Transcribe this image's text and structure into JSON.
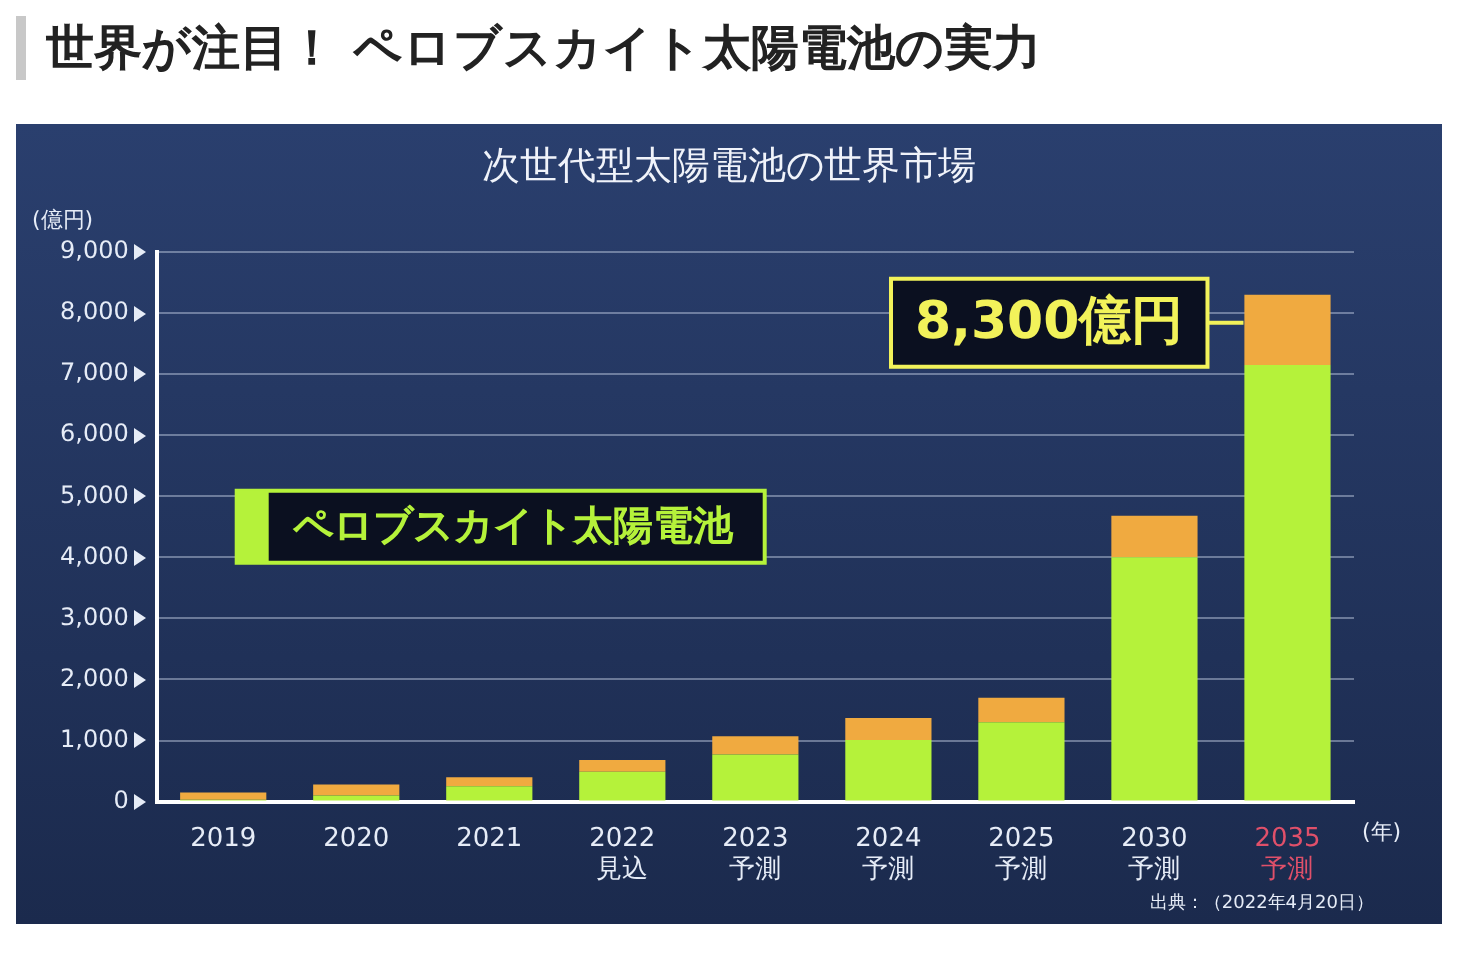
{
  "chart_data": {
    "type": "bar",
    "title": "世界が注目！ ペロブスカイト太陽電池の実力",
    "subtitle": "次世代型太陽電池の世界市場",
    "ylabel": "(億円)",
    "xlabel": "(年)",
    "categories": [
      "2019",
      "2020",
      "2021",
      "2022\n見込",
      "2023\n予測",
      "2024\n予測",
      "2025\n予測",
      "2030\n予測",
      "2035\n予測"
    ],
    "stacked": true,
    "series": [
      {
        "name": "ペロブスカイト太陽電池",
        "color": "#b5f23a",
        "values": [
          30,
          100,
          250,
          490,
          770,
          1010,
          1300,
          4000,
          7150
        ]
      },
      {
        "color": "#f0aa40",
        "values": [
          120,
          180,
          150,
          190,
          300,
          360,
          400,
          680,
          1150
        ]
      }
    ],
    "ylim": [
      0,
      9000
    ],
    "yticks": [
      {
        "value": 0,
        "label": "0"
      },
      {
        "value": 1000,
        "label": "1,000"
      },
      {
        "value": 2000,
        "label": "2,000"
      },
      {
        "value": 3000,
        "label": "3,000"
      },
      {
        "value": 4000,
        "label": "4,000"
      },
      {
        "value": 5000,
        "label": "5,000"
      },
      {
        "value": 6000,
        "label": "6,000"
      },
      {
        "value": 7000,
        "label": "7,000"
      },
      {
        "value": 8000,
        "label": "8,000"
      },
      {
        "value": 9000,
        "label": "9,000"
      }
    ],
    "grid": "y",
    "legend": "left",
    "annotations": [
      {
        "text": "8,300億円",
        "x": "2035\n予測",
        "y": 8300
      },
      "出典：（2022年4月20日）"
    ]
  }
}
